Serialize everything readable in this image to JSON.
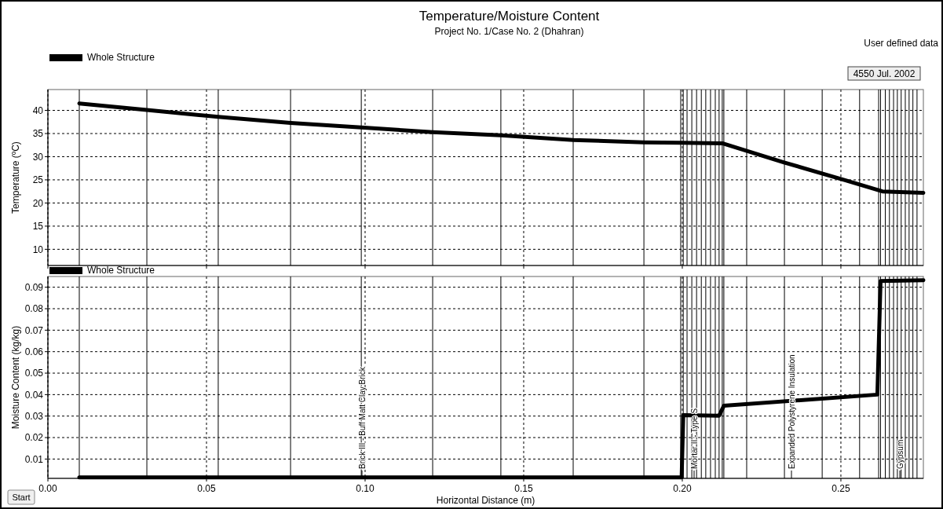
{
  "chart_data": [
    {
      "type": "line",
      "title": "Temperature/Moisture Content",
      "subtitle": "Project No. 1/Case No. 2  (Dhahran)",
      "ylabel": "Temperature (ºC)",
      "x": [
        0.0099,
        0.0312,
        0.0537,
        0.0765,
        0.0988,
        0.1213,
        0.1428,
        0.1656,
        0.1879,
        0.1998,
        0.2126,
        0.2319,
        0.2515,
        0.2631,
        0.276
      ],
      "series": [
        {
          "name": "Whole Structure",
          "color": "#000000",
          "values": [
            41.5,
            40.1,
            38.6,
            37.3,
            36.3,
            35.3,
            34.6,
            33.6,
            33.1,
            33.0,
            32.9,
            28.8,
            24.9,
            22.5,
            22.2
          ]
        }
      ],
      "xlim": [
        0,
        0.276
      ],
      "xticks": [
        0,
        0.05,
        0.1,
        0.15,
        0.2,
        0.25
      ],
      "ylim": [
        6.5,
        44.5
      ],
      "yticks": [
        10,
        15,
        20,
        25,
        30,
        35,
        40
      ],
      "tick_labels": "y",
      "grid": true,
      "legend": "top left",
      "ref_lines": [
        {
          "axis": "x",
          "value": 0.0099
        },
        {
          "axis": "x",
          "value": 0.0312
        },
        {
          "axis": "x",
          "value": 0.0537
        },
        {
          "axis": "x",
          "value": 0.0765
        },
        {
          "axis": "x",
          "value": 0.0988
        },
        {
          "axis": "x",
          "value": 0.1213
        },
        {
          "axis": "x",
          "value": 0.1428
        },
        {
          "axis": "x",
          "value": 0.1656
        },
        {
          "axis": "x",
          "value": 0.1879
        },
        {
          "axis": "x",
          "value": 0.1995
        },
        {
          "axis": "x",
          "value": 0.2003
        },
        {
          "axis": "x",
          "value": 0.2015
        },
        {
          "axis": "x",
          "value": 0.203
        },
        {
          "axis": "x",
          "value": 0.2045
        },
        {
          "axis": "x",
          "value": 0.206
        },
        {
          "axis": "x",
          "value": 0.2074
        },
        {
          "axis": "x",
          "value": 0.2089
        },
        {
          "axis": "x",
          "value": 0.2104
        },
        {
          "axis": "x",
          "value": 0.2116
        },
        {
          "axis": "x",
          "value": 0.2126
        },
        {
          "axis": "x",
          "value": 0.2131
        },
        {
          "axis": "x",
          "value": 0.2203
        },
        {
          "axis": "x",
          "value": 0.2322
        },
        {
          "axis": "x",
          "value": 0.2441
        },
        {
          "axis": "x",
          "value": 0.2559
        },
        {
          "axis": "x",
          "value": 0.2619
        },
        {
          "axis": "x",
          "value": 0.2625
        },
        {
          "axis": "x",
          "value": 0.264
        },
        {
          "axis": "x",
          "value": 0.2653
        },
        {
          "axis": "x",
          "value": 0.2666
        },
        {
          "axis": "x",
          "value": 0.2678
        },
        {
          "axis": "x",
          "value": 0.269
        },
        {
          "axis": "x",
          "value": 0.2703
        },
        {
          "axis": "x",
          "value": 0.2715
        },
        {
          "axis": "x",
          "value": 0.2727
        },
        {
          "axis": "x",
          "value": 0.274
        }
      ],
      "annotations": [
        "User defined data",
        "4550   Jul. 2002"
      ]
    },
    {
      "type": "line",
      "xlabel": "Horizontal Distance (m)",
      "ylabel": "Moisture Content (kg/kg)",
      "x": [
        0.0099,
        0.1998,
        0.2003,
        0.2116,
        0.2131,
        0.2615,
        0.2625,
        0.276
      ],
      "series": [
        {
          "name": "Whole Structure",
          "color": "#000000",
          "values": [
            0.0015,
            0.0015,
            0.0304,
            0.0302,
            0.0348,
            0.04,
            0.0929,
            0.0933
          ]
        }
      ],
      "xlim": [
        0,
        0.276
      ],
      "xticks": [
        {
          "value": 0,
          "label": "0.00"
        },
        0.05,
        {
          "value": 0.1,
          "label": "0.10"
        },
        0.15,
        {
          "value": 0.2,
          "label": "0.20"
        },
        0.25
      ],
      "ylim": [
        0.001,
        0.095
      ],
      "yticks": [
        0.01,
        0.02,
        0.03,
        0.04,
        0.05,
        0.06,
        0.07,
        0.08,
        0.09
      ],
      "grid": true,
      "legend": "top left",
      "ref_lines": [
        {
          "axis": "x",
          "value": 0.0099
        },
        {
          "axis": "x",
          "value": 0.0312
        },
        {
          "axis": "x",
          "value": 0.0537
        },
        {
          "axis": "x",
          "value": 0.0765
        },
        {
          "axis": "x",
          "value": 0.0988
        },
        {
          "axis": "x",
          "value": 0.1213
        },
        {
          "axis": "x",
          "value": 0.1428
        },
        {
          "axis": "x",
          "value": 0.1656
        },
        {
          "axis": "x",
          "value": 0.1879
        },
        {
          "axis": "x",
          "value": 0.1995
        },
        {
          "axis": "x",
          "value": 0.2003
        },
        {
          "axis": "x",
          "value": 0.2015
        },
        {
          "axis": "x",
          "value": 0.203
        },
        {
          "axis": "x",
          "value": 0.2045
        },
        {
          "axis": "x",
          "value": 0.206
        },
        {
          "axis": "x",
          "value": 0.2074
        },
        {
          "axis": "x",
          "value": 0.2089
        },
        {
          "axis": "x",
          "value": 0.2104
        },
        {
          "axis": "x",
          "value": 0.2116
        },
        {
          "axis": "x",
          "value": 0.2126
        },
        {
          "axis": "x",
          "value": 0.2131
        },
        {
          "axis": "x",
          "value": 0.2203
        },
        {
          "axis": "x",
          "value": 0.2322
        },
        {
          "axis": "x",
          "value": 0.2441
        },
        {
          "axis": "x",
          "value": 0.2559
        },
        {
          "axis": "x",
          "value": 0.2619
        },
        {
          "axis": "x",
          "value": 0.2625
        },
        {
          "axis": "x",
          "value": 0.264
        },
        {
          "axis": "x",
          "value": 0.2653
        },
        {
          "axis": "x",
          "value": 0.2666
        },
        {
          "axis": "x",
          "value": 0.2678
        },
        {
          "axis": "x",
          "value": 0.269
        },
        {
          "axis": "x",
          "value": 0.2703
        },
        {
          "axis": "x",
          "value": 0.2715
        },
        {
          "axis": "x",
          "value": 0.2727
        },
        {
          "axis": "x",
          "value": 0.274
        }
      ],
      "annotations": [
        "Start",
        "Brick III - Buff Matt Clay Brick",
        "Mortar II - Type S",
        "Expanded Polystyrene Insulation",
        "Gypsum"
      ]
    }
  ]
}
